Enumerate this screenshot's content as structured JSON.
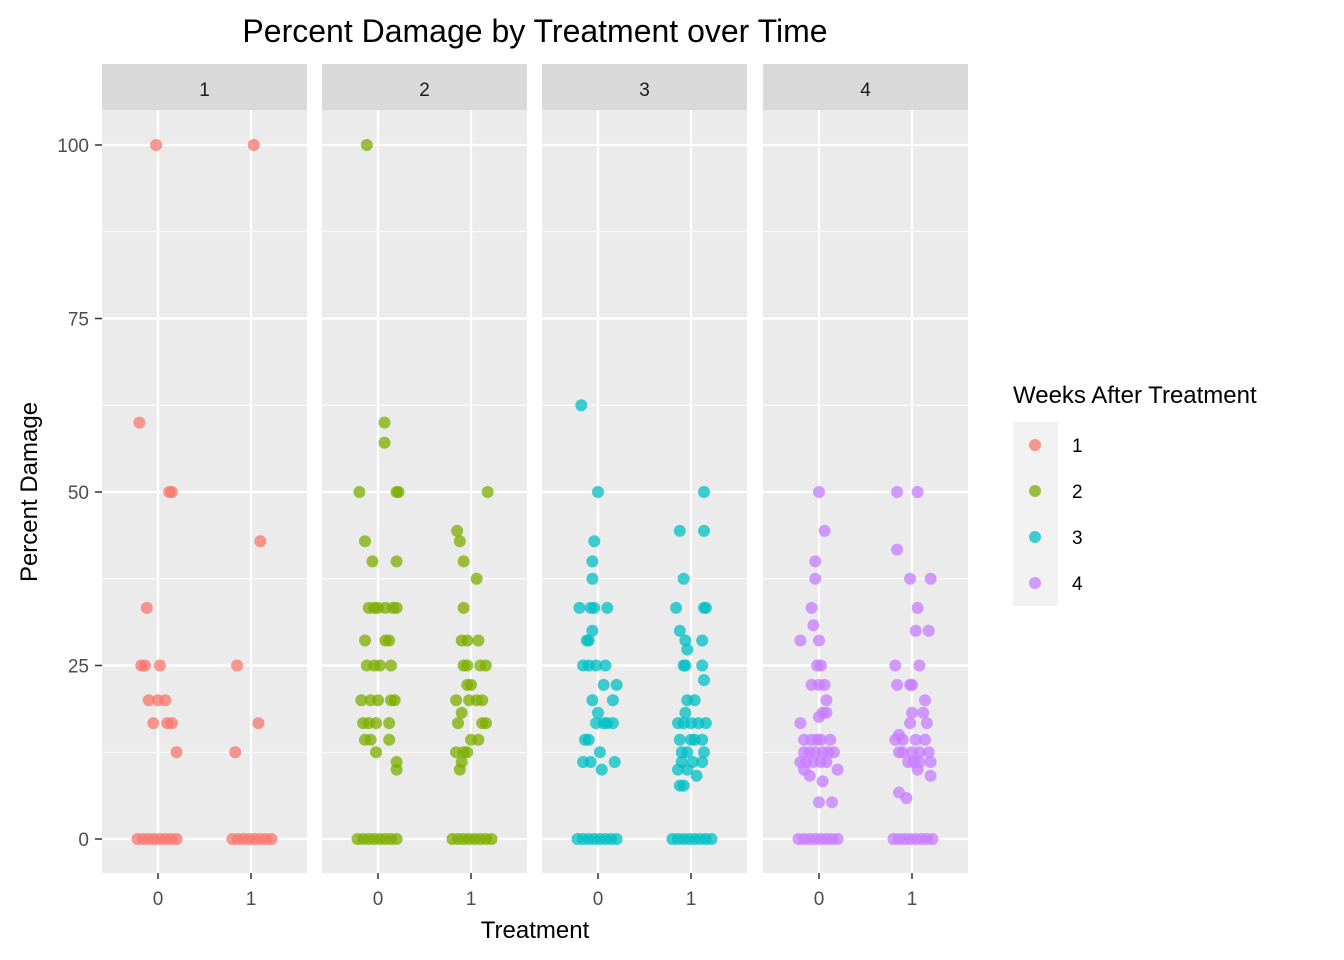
{
  "chart_data": {
    "type": "scatter",
    "title": "Percent Damage by Treatment over Time",
    "xlabel": "Treatment",
    "ylabel": "Percent Damage",
    "facet_labels": [
      "1",
      "2",
      "3",
      "4"
    ],
    "x_categories": [
      "0",
      "1"
    ],
    "y_ticks": [
      0,
      25,
      50,
      75,
      100
    ],
    "y_tick_labels": [
      "0",
      "25",
      "50",
      "75",
      "100"
    ],
    "ylim": [
      -5,
      105
    ],
    "grid": true,
    "jitter": true,
    "legend": {
      "title": "Weeks After Treatment",
      "position": "right",
      "items": [
        {
          "label": "1",
          "color": "#F8766D"
        },
        {
          "label": "2",
          "color": "#7CAE00"
        },
        {
          "label": "3",
          "color": "#00BFC4"
        },
        {
          "label": "4",
          "color": "#C77CFF"
        }
      ]
    },
    "series": [
      {
        "facet": "1",
        "color": "#F8766D",
        "points": [
          [
            -0.02,
            100
          ],
          [
            -0.2,
            60
          ],
          [
            0.15,
            50
          ],
          [
            0.12,
            50
          ],
          [
            -0.12,
            33.3
          ],
          [
            -0.18,
            25
          ],
          [
            -0.14,
            25
          ],
          [
            0.02,
            25
          ],
          [
            -0.1,
            20
          ],
          [
            0,
            20
          ],
          [
            0.08,
            20
          ],
          [
            -0.05,
            16.7
          ],
          [
            0.1,
            16.7
          ],
          [
            0.15,
            16.7
          ],
          [
            0.2,
            12.5
          ],
          [
            -0.22,
            0
          ],
          [
            -0.16,
            0
          ],
          [
            -0.1,
            0
          ],
          [
            -0.04,
            0
          ],
          [
            0.02,
            0
          ],
          [
            0.08,
            0
          ],
          [
            0.14,
            0
          ],
          [
            0.2,
            0
          ],
          [
            1.03,
            100
          ],
          [
            1.1,
            42.9
          ],
          [
            0.85,
            25
          ],
          [
            1.08,
            16.7
          ],
          [
            0.83,
            12.5
          ],
          [
            0.8,
            0
          ],
          [
            0.86,
            0
          ],
          [
            0.92,
            0
          ],
          [
            0.98,
            0
          ],
          [
            1.04,
            0
          ],
          [
            1.1,
            0
          ],
          [
            1.16,
            0
          ],
          [
            1.22,
            0
          ]
        ]
      },
      {
        "facet": "2",
        "color": "#7CAE00",
        "points": [
          [
            -0.12,
            100
          ],
          [
            0.07,
            60
          ],
          [
            0.07,
            57.1
          ],
          [
            -0.2,
            50
          ],
          [
            0.2,
            50
          ],
          [
            0.22,
            50
          ],
          [
            -0.14,
            42.9
          ],
          [
            -0.06,
            40
          ],
          [
            0.2,
            40
          ],
          [
            -0.1,
            33.3
          ],
          [
            -0.04,
            33.3
          ],
          [
            0,
            33.3
          ],
          [
            0.08,
            33.3
          ],
          [
            0.16,
            33.3
          ],
          [
            0.2,
            33.3
          ],
          [
            -0.14,
            28.6
          ],
          [
            0.08,
            28.6
          ],
          [
            0.12,
            28.6
          ],
          [
            -0.12,
            25
          ],
          [
            -0.04,
            25
          ],
          [
            0.02,
            25
          ],
          [
            0.14,
            25
          ],
          [
            -0.18,
            20
          ],
          [
            -0.08,
            20
          ],
          [
            0,
            20
          ],
          [
            0.14,
            20
          ],
          [
            0.18,
            20
          ],
          [
            -0.16,
            16.7
          ],
          [
            -0.1,
            16.7
          ],
          [
            -0.02,
            16.7
          ],
          [
            0.12,
            16.7
          ],
          [
            -0.14,
            14.3
          ],
          [
            -0.08,
            14.3
          ],
          [
            0.12,
            14.3
          ],
          [
            -0.02,
            12.5
          ],
          [
            0.2,
            11.1
          ],
          [
            0.2,
            10
          ],
          [
            -0.22,
            0
          ],
          [
            -0.16,
            0
          ],
          [
            -0.1,
            0
          ],
          [
            -0.04,
            0
          ],
          [
            0.02,
            0
          ],
          [
            0.08,
            0
          ],
          [
            0.14,
            0
          ],
          [
            0.2,
            0
          ],
          [
            1.18,
            50
          ],
          [
            0.85,
            44.4
          ],
          [
            0.88,
            42.9
          ],
          [
            0.92,
            40
          ],
          [
            1.06,
            37.5
          ],
          [
            0.92,
            33.3
          ],
          [
            0.9,
            28.6
          ],
          [
            0.96,
            28.6
          ],
          [
            1.08,
            28.6
          ],
          [
            0.92,
            25
          ],
          [
            0.96,
            25
          ],
          [
            1.1,
            25
          ],
          [
            1.16,
            25
          ],
          [
            0.96,
            22.2
          ],
          [
            1.0,
            22.2
          ],
          [
            0.84,
            20
          ],
          [
            0.98,
            20
          ],
          [
            1.06,
            20
          ],
          [
            1.12,
            20
          ],
          [
            0.86,
            16.7
          ],
          [
            0.9,
            18.2
          ],
          [
            1.12,
            16.7
          ],
          [
            1.16,
            16.7
          ],
          [
            1.0,
            14.3
          ],
          [
            1.08,
            14.3
          ],
          [
            0.84,
            12.5
          ],
          [
            0.92,
            12.5
          ],
          [
            0.96,
            12.5
          ],
          [
            0.9,
            11.1
          ],
          [
            0.88,
            10
          ],
          [
            0.8,
            0
          ],
          [
            0.86,
            0
          ],
          [
            0.92,
            0
          ],
          [
            0.98,
            0
          ],
          [
            1.04,
            0
          ],
          [
            1.1,
            0
          ],
          [
            1.16,
            0
          ],
          [
            1.22,
            0
          ]
        ]
      },
      {
        "facet": "3",
        "color": "#00BFC4",
        "points": [
          [
            -0.18,
            62.5
          ],
          [
            0,
            50
          ],
          [
            -0.04,
            42.9
          ],
          [
            -0.06,
            40
          ],
          [
            -0.06,
            37.5
          ],
          [
            -0.2,
            33.3
          ],
          [
            -0.08,
            33.3
          ],
          [
            -0.04,
            33.3
          ],
          [
            0.1,
            33.3
          ],
          [
            -0.06,
            30
          ],
          [
            -0.12,
            28.6
          ],
          [
            -0.1,
            28.6
          ],
          [
            -0.16,
            25
          ],
          [
            -0.1,
            25
          ],
          [
            -0.02,
            25
          ],
          [
            0.08,
            25
          ],
          [
            0.06,
            22.2
          ],
          [
            0.2,
            22.2
          ],
          [
            -0.06,
            20
          ],
          [
            0.16,
            20
          ],
          [
            0,
            18.2
          ],
          [
            -0.02,
            16.7
          ],
          [
            0.06,
            16.7
          ],
          [
            0.1,
            16.7
          ],
          [
            0.16,
            16.7
          ],
          [
            -0.14,
            14.3
          ],
          [
            -0.1,
            14.3
          ],
          [
            0.02,
            12.5
          ],
          [
            -0.16,
            11.1
          ],
          [
            -0.08,
            11.1
          ],
          [
            0.18,
            11.1
          ],
          [
            0.04,
            10
          ],
          [
            -0.22,
            0
          ],
          [
            -0.16,
            0
          ],
          [
            -0.1,
            0
          ],
          [
            -0.04,
            0
          ],
          [
            0.02,
            0
          ],
          [
            0.08,
            0
          ],
          [
            0.14,
            0
          ],
          [
            0.2,
            0
          ],
          [
            1.14,
            50
          ],
          [
            0.88,
            44.4
          ],
          [
            1.14,
            44.4
          ],
          [
            0.92,
            37.5
          ],
          [
            0.84,
            33.3
          ],
          [
            1.14,
            33.3
          ],
          [
            1.16,
            33.3
          ],
          [
            0.88,
            30
          ],
          [
            0.94,
            28.6
          ],
          [
            1.12,
            28.6
          ],
          [
            0.92,
            25
          ],
          [
            0.94,
            25
          ],
          [
            1.12,
            25
          ],
          [
            1.14,
            22.9
          ],
          [
            0.96,
            27.3
          ],
          [
            0.96,
            20
          ],
          [
            1.04,
            20
          ],
          [
            0.94,
            18.2
          ],
          [
            0.86,
            16.7
          ],
          [
            0.92,
            16.7
          ],
          [
            1.0,
            16.7
          ],
          [
            1.08,
            16.7
          ],
          [
            1.16,
            16.7
          ],
          [
            0.88,
            14.3
          ],
          [
            1.0,
            14.3
          ],
          [
            1.04,
            14.3
          ],
          [
            1.12,
            14.3
          ],
          [
            0.9,
            12.5
          ],
          [
            0.96,
            12.5
          ],
          [
            1.14,
            12.5
          ],
          [
            0.9,
            11.1
          ],
          [
            1.02,
            11.1
          ],
          [
            1.12,
            11.1
          ],
          [
            0.86,
            10
          ],
          [
            0.96,
            10
          ],
          [
            1.06,
            9.1
          ],
          [
            0.88,
            7.7
          ],
          [
            0.92,
            7.7
          ],
          [
            0.8,
            0
          ],
          [
            0.86,
            0
          ],
          [
            0.92,
            0
          ],
          [
            0.98,
            0
          ],
          [
            1.04,
            0
          ],
          [
            1.1,
            0
          ],
          [
            1.16,
            0
          ],
          [
            1.22,
            0
          ]
        ]
      },
      {
        "facet": "4",
        "color": "#C77CFF",
        "points": [
          [
            0,
            50
          ],
          [
            0.06,
            44.4
          ],
          [
            -0.04,
            40
          ],
          [
            -0.04,
            37.5
          ],
          [
            -0.08,
            33.3
          ],
          [
            -0.06,
            30.8
          ],
          [
            -0.2,
            28.6
          ],
          [
            0,
            28.6
          ],
          [
            -0.02,
            25
          ],
          [
            0.02,
            25
          ],
          [
            -0.08,
            22.2
          ],
          [
            0,
            22.2
          ],
          [
            0.06,
            22.2
          ],
          [
            0.08,
            20
          ],
          [
            0,
            17.6
          ],
          [
            0.04,
            18.2
          ],
          [
            0.08,
            18.2
          ],
          [
            -0.2,
            16.7
          ],
          [
            -0.16,
            14.3
          ],
          [
            -0.08,
            14.3
          ],
          [
            -0.02,
            14.3
          ],
          [
            0.02,
            14.3
          ],
          [
            0.12,
            14.3
          ],
          [
            -0.16,
            12.5
          ],
          [
            -0.1,
            12.5
          ],
          [
            -0.04,
            12.5
          ],
          [
            0.04,
            12.5
          ],
          [
            0.1,
            12.5
          ],
          [
            0.16,
            12.5
          ],
          [
            -0.2,
            11.1
          ],
          [
            -0.14,
            11.1
          ],
          [
            -0.06,
            11.1
          ],
          [
            0.02,
            11.1
          ],
          [
            0.08,
            11.1
          ],
          [
            -0.16,
            10
          ],
          [
            0.2,
            10
          ],
          [
            -0.1,
            9.1
          ],
          [
            0.04,
            8.3
          ],
          [
            0,
            5.3
          ],
          [
            0.14,
            5.3
          ],
          [
            -0.22,
            0
          ],
          [
            -0.16,
            0
          ],
          [
            -0.1,
            0
          ],
          [
            -0.04,
            0
          ],
          [
            0.02,
            0
          ],
          [
            0.08,
            0
          ],
          [
            0.14,
            0
          ],
          [
            0.2,
            0
          ],
          [
            0.84,
            50
          ],
          [
            1.06,
            50
          ],
          [
            0.84,
            41.7
          ],
          [
            0.98,
            37.5
          ],
          [
            1.2,
            37.5
          ],
          [
            1.06,
            33.3
          ],
          [
            1.04,
            30
          ],
          [
            1.18,
            30
          ],
          [
            0.82,
            25
          ],
          [
            1.08,
            25
          ],
          [
            0.84,
            22.2
          ],
          [
            0.98,
            22.2
          ],
          [
            1.0,
            22.2
          ],
          [
            1.14,
            20
          ],
          [
            1.0,
            18.2
          ],
          [
            1.12,
            18.2
          ],
          [
            0.98,
            16.7
          ],
          [
            1.16,
            16.7
          ],
          [
            0.86,
            15
          ],
          [
            0.82,
            14.3
          ],
          [
            0.9,
            14.3
          ],
          [
            1.04,
            14.3
          ],
          [
            1.14,
            14.3
          ],
          [
            0.86,
            12.5
          ],
          [
            0.9,
            12.5
          ],
          [
            1.0,
            12.5
          ],
          [
            1.08,
            12.5
          ],
          [
            1.18,
            12.5
          ],
          [
            0.96,
            11.1
          ],
          [
            1.02,
            11.1
          ],
          [
            1.08,
            11.1
          ],
          [
            1.2,
            11.1
          ],
          [
            1.06,
            10
          ],
          [
            1.2,
            9.1
          ],
          [
            0.86,
            6.7
          ],
          [
            0.94,
            5.9
          ],
          [
            0.8,
            0
          ],
          [
            0.86,
            0
          ],
          [
            0.92,
            0
          ],
          [
            0.98,
            0
          ],
          [
            1.04,
            0
          ],
          [
            1.1,
            0
          ],
          [
            1.16,
            0
          ],
          [
            1.22,
            0
          ]
        ]
      }
    ]
  }
}
